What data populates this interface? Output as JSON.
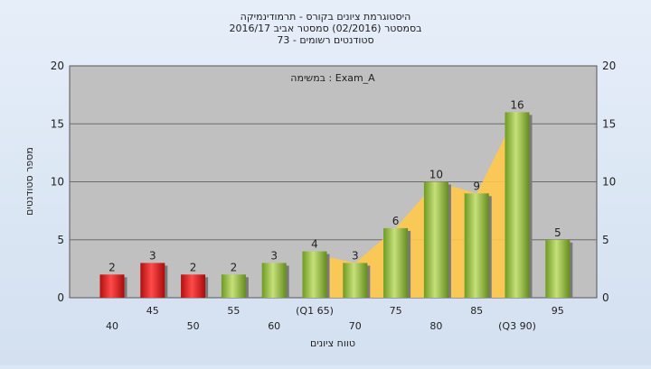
{
  "chart_data": {
    "type": "bar",
    "title_lines": [
      "היסטוגרמת ציונים בקורס - תרמודינמיקה",
      "בסמסטר  (02/2016)  סמסטר אביב 2016/17",
      "סטודנטים רשומים - 73"
    ],
    "annotation": "במשימה : Exam_A",
    "xlabel": "טווח ציונים",
    "ylabel": "מספר סטודנטים",
    "ylim": [
      0,
      20
    ],
    "yticks": [
      0,
      5,
      10,
      15,
      20
    ],
    "categories": [
      "40",
      "45",
      "50",
      "55",
      "60",
      "(Q1 65)",
      "70",
      "75",
      "80",
      "85",
      "(Q3 90)",
      "95"
    ],
    "values": [
      2,
      3,
      2,
      2,
      3,
      4,
      3,
      6,
      10,
      9,
      16,
      5
    ],
    "grid": true,
    "colors": {
      "low": "#e02020",
      "high": "#8db43a",
      "band": "#ffc94a",
      "plot_bg": "#c0c0c0"
    }
  }
}
